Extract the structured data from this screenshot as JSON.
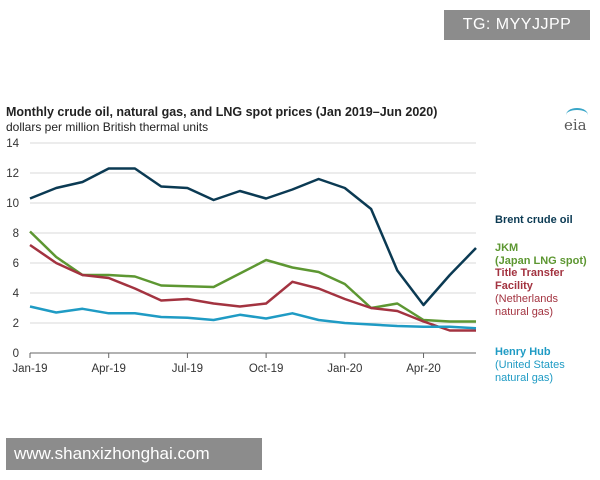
{
  "watermark_top": "TG: MYYJJPP",
  "watermark_bottom": "www.shanxizhonghai.com",
  "logo_text": "eia",
  "chart_data": {
    "type": "line",
    "title": "Monthly crude oil, natural gas, and LNG spot prices (Jan 2019–Jun 2020)",
    "subtitle": "dollars per million British thermal units",
    "xlabel": "",
    "ylabel": "",
    "ylim": [
      0,
      14
    ],
    "yticks": [
      0,
      2,
      4,
      6,
      8,
      10,
      12,
      14
    ],
    "grid": true,
    "x": [
      "Jan-19",
      "Feb-19",
      "Mar-19",
      "Apr-19",
      "May-19",
      "Jun-19",
      "Jul-19",
      "Aug-19",
      "Sep-19",
      "Oct-19",
      "Nov-19",
      "Dec-19",
      "Jan-20",
      "Feb-20",
      "Mar-20",
      "Apr-20",
      "May-20",
      "Jun-20"
    ],
    "xtick_labels": [
      {
        "index": 0,
        "label": "Jan-19"
      },
      {
        "index": 3,
        "label": "Apr-19"
      },
      {
        "index": 6,
        "label": "Jul-19"
      },
      {
        "index": 9,
        "label": "Oct-19"
      },
      {
        "index": 12,
        "label": "Jan-20"
      },
      {
        "index": 15,
        "label": "Apr-20"
      }
    ],
    "series": [
      {
        "name": "Brent crude oil",
        "label_lines": [
          "Brent crude oil"
        ],
        "color": "#0b3a53",
        "values": [
          10.3,
          11.0,
          11.4,
          12.3,
          12.3,
          11.1,
          11.0,
          10.2,
          10.8,
          10.3,
          10.9,
          11.6,
          11.0,
          9.6,
          5.5,
          3.2,
          5.2,
          7.0
        ]
      },
      {
        "name": "JKM (Japan LNG spot)",
        "label_lines": [
          "JKM",
          "(Japan LNG spot)"
        ],
        "color": "#5d9732",
        "values": [
          8.1,
          6.4,
          5.2,
          5.2,
          5.1,
          4.5,
          4.45,
          4.4,
          5.3,
          6.2,
          5.7,
          5.4,
          4.6,
          3.0,
          3.3,
          2.2,
          2.1,
          2.1
        ]
      },
      {
        "name": "Title Transfer Facility (Netherlands natural gas)",
        "label_lines": [
          "Title Transfer",
          "Facility",
          "(Netherlands",
          "natural gas)"
        ],
        "color": "#a33340",
        "values": [
          7.2,
          6.0,
          5.2,
          5.0,
          4.3,
          3.5,
          3.6,
          3.3,
          3.1,
          3.3,
          4.75,
          4.3,
          3.6,
          3.0,
          2.8,
          2.1,
          1.5,
          1.5
        ]
      },
      {
        "name": "Henry Hub (United States natural gas)",
        "label_lines": [
          "Henry Hub",
          "(United States",
          "natural gas)"
        ],
        "color": "#1f9bc4",
        "values": [
          3.1,
          2.7,
          2.95,
          2.65,
          2.65,
          2.4,
          2.35,
          2.2,
          2.55,
          2.3,
          2.65,
          2.2,
          2.0,
          1.9,
          1.8,
          1.75,
          1.75,
          1.65
        ]
      }
    ]
  }
}
